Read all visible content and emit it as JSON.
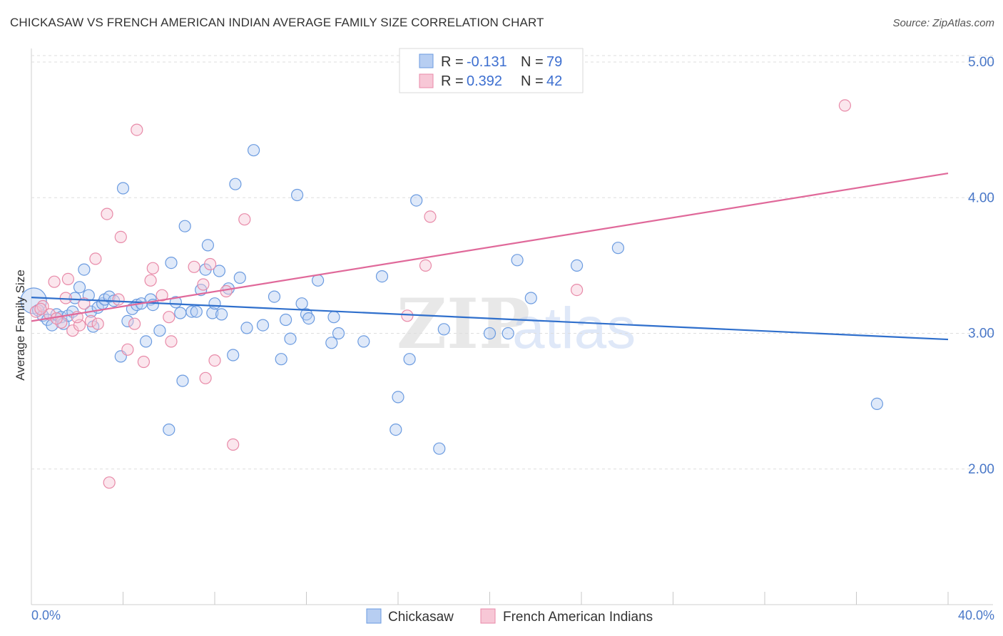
{
  "header": {
    "title": "CHICKASAW VS FRENCH AMERICAN INDIAN AVERAGE FAMILY SIZE CORRELATION CHART",
    "source": "Source: ZipAtlas.com"
  },
  "legend": {
    "r_label": "R =",
    "n_label": "N =",
    "series0": {
      "r": "-0.131",
      "n": "79"
    },
    "series1": {
      "r": "0.392",
      "n": "42"
    }
  },
  "watermark": {
    "zip": "ZIP",
    "atlas": "atlas"
  },
  "chart_data": {
    "type": "scatter",
    "title": "CHICKASAW VS FRENCH AMERICAN INDIAN AVERAGE FAMILY SIZE CORRELATION CHART",
    "xlabel": "",
    "ylabel": "Average Family Size",
    "xlim": [
      0,
      40
    ],
    "ylim": [
      1.0,
      5.1
    ],
    "x_tick_labels": [
      "0.0%",
      "40.0%"
    ],
    "y_ticks": [
      2.0,
      3.0,
      4.0,
      5.0
    ],
    "y_tick_labels": [
      "2.00",
      "3.00",
      "4.00",
      "5.00"
    ],
    "grid": true,
    "legend_position": "top-center",
    "series": [
      {
        "name": "Chickasaw",
        "color": "#6b9be0",
        "fill": "#b7cef2",
        "trend": {
          "x": [
            0,
            40
          ],
          "y": [
            3.265,
            2.955
          ]
        },
        "points": [
          [
            0.1,
            3.24
          ],
          [
            0.3,
            3.17
          ],
          [
            0.5,
            3.13
          ],
          [
            0.7,
            3.1
          ],
          [
            0.9,
            3.06
          ],
          [
            1.1,
            3.14
          ],
          [
            1.3,
            3.12
          ],
          [
            1.4,
            3.07
          ],
          [
            1.6,
            3.13
          ],
          [
            1.8,
            3.16
          ],
          [
            1.9,
            3.26
          ],
          [
            2.1,
            3.34
          ],
          [
            2.3,
            3.47
          ],
          [
            2.5,
            3.28
          ],
          [
            2.6,
            3.16
          ],
          [
            2.7,
            3.05
          ],
          [
            2.9,
            3.19
          ],
          [
            3.1,
            3.22
          ],
          [
            3.2,
            3.25
          ],
          [
            3.4,
            3.27
          ],
          [
            3.6,
            3.24
          ],
          [
            3.9,
            2.83
          ],
          [
            4.0,
            4.07
          ],
          [
            4.2,
            3.09
          ],
          [
            4.4,
            3.18
          ],
          [
            4.6,
            3.21
          ],
          [
            4.8,
            3.22
          ],
          [
            5.0,
            2.94
          ],
          [
            5.2,
            3.25
          ],
          [
            5.3,
            3.21
          ],
          [
            5.6,
            3.02
          ],
          [
            6.0,
            2.29
          ],
          [
            6.1,
            3.52
          ],
          [
            6.3,
            3.23
          ],
          [
            6.5,
            3.15
          ],
          [
            6.6,
            2.65
          ],
          [
            6.7,
            3.79
          ],
          [
            7.0,
            3.16
          ],
          [
            7.2,
            3.16
          ],
          [
            7.4,
            3.32
          ],
          [
            7.6,
            3.47
          ],
          [
            7.7,
            3.65
          ],
          [
            7.9,
            3.15
          ],
          [
            8.0,
            3.22
          ],
          [
            8.2,
            3.46
          ],
          [
            8.3,
            3.14
          ],
          [
            8.6,
            3.33
          ],
          [
            8.8,
            2.84
          ],
          [
            8.9,
            4.1
          ],
          [
            9.1,
            3.41
          ],
          [
            9.4,
            3.04
          ],
          [
            9.7,
            4.35
          ],
          [
            10.1,
            3.06
          ],
          [
            10.6,
            3.27
          ],
          [
            10.9,
            2.81
          ],
          [
            11.1,
            3.1
          ],
          [
            11.3,
            2.96
          ],
          [
            11.6,
            4.02
          ],
          [
            11.8,
            3.22
          ],
          [
            12.0,
            3.14
          ],
          [
            12.1,
            3.11
          ],
          [
            12.5,
            3.39
          ],
          [
            13.1,
            2.93
          ],
          [
            13.2,
            3.12
          ],
          [
            13.4,
            3.0
          ],
          [
            14.5,
            2.94
          ],
          [
            15.3,
            3.42
          ],
          [
            15.9,
            2.29
          ],
          [
            16.0,
            2.53
          ],
          [
            16.5,
            2.81
          ],
          [
            16.8,
            3.98
          ],
          [
            17.8,
            2.15
          ],
          [
            18.0,
            3.03
          ],
          [
            20.0,
            3.0
          ],
          [
            20.8,
            3.0
          ],
          [
            21.2,
            3.54
          ],
          [
            21.8,
            3.26
          ],
          [
            23.8,
            3.5
          ],
          [
            25.6,
            3.63
          ],
          [
            36.9,
            2.48
          ]
        ]
      },
      {
        "name": "French American Indians",
        "color": "#e88aa8",
        "fill": "#f7c7d6",
        "trend": {
          "x": [
            0,
            40
          ],
          "y": [
            3.09,
            4.18
          ]
        },
        "points": [
          [
            0.2,
            3.16
          ],
          [
            0.5,
            3.2
          ],
          [
            0.8,
            3.14
          ],
          [
            1.0,
            3.38
          ],
          [
            1.3,
            3.08
          ],
          [
            1.5,
            3.26
          ],
          [
            1.6,
            3.4
          ],
          [
            1.8,
            3.02
          ],
          [
            2.1,
            3.06
          ],
          [
            2.3,
            3.22
          ],
          [
            2.6,
            3.09
          ],
          [
            2.8,
            3.55
          ],
          [
            2.9,
            3.07
          ],
          [
            3.3,
            3.88
          ],
          [
            3.4,
            1.9
          ],
          [
            3.8,
            3.25
          ],
          [
            3.9,
            3.71
          ],
          [
            4.2,
            2.88
          ],
          [
            4.5,
            3.07
          ],
          [
            4.6,
            4.5
          ],
          [
            4.9,
            2.79
          ],
          [
            5.2,
            3.39
          ],
          [
            5.3,
            3.48
          ],
          [
            5.7,
            3.28
          ],
          [
            6.0,
            3.12
          ],
          [
            6.1,
            2.94
          ],
          [
            7.1,
            3.49
          ],
          [
            7.5,
            3.36
          ],
          [
            7.6,
            2.67
          ],
          [
            7.8,
            3.51
          ],
          [
            8.0,
            2.8
          ],
          [
            8.5,
            3.31
          ],
          [
            8.8,
            2.18
          ],
          [
            9.3,
            3.84
          ],
          [
            16.4,
            3.13
          ],
          [
            17.2,
            3.5
          ],
          [
            17.4,
            3.86
          ],
          [
            23.8,
            3.32
          ],
          [
            35.5,
            4.68
          ],
          [
            0.4,
            3.18
          ],
          [
            1.1,
            3.11
          ],
          [
            2.0,
            3.12
          ]
        ]
      }
    ]
  }
}
